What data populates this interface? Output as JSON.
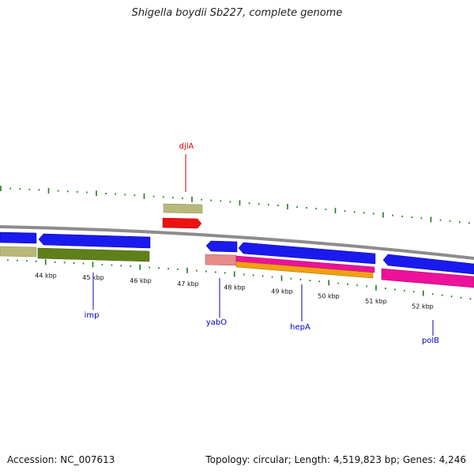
{
  "title": "Shigella boydii Sb227, complete genome",
  "footer": {
    "accession": "Accession: NC_007613",
    "topology": "Topology: circular; Length: 4,519,823 bp; Genes: 4,246"
  },
  "colors": {
    "backbone": "#8c8c8c",
    "tick": "#1e7a1e",
    "blue_gene": "#1a1aee",
    "olive_gene": "#5f7f1a",
    "khaki_gene": "#b8b87a",
    "red_gene": "#ee1111",
    "pink_gene": "#ee1199",
    "orange_gene": "#f0a010",
    "salmon_gene": "#e88a8a",
    "red_label": "#cc0000",
    "blue_label": "#0000cc"
  },
  "ticks": [
    {
      "label": "44 kbp"
    },
    {
      "label": "45 kbp"
    },
    {
      "label": "46 kbp"
    },
    {
      "label": "47 kbp"
    },
    {
      "label": "48 kbp"
    },
    {
      "label": "49 kbp"
    },
    {
      "label": "50 kbp"
    },
    {
      "label": "51 kbp"
    },
    {
      "label": "52 kbp"
    }
  ],
  "gene_labels": [
    {
      "name": "djlA",
      "strand": "forward"
    },
    {
      "name": "imp",
      "strand": "reverse"
    },
    {
      "name": "yabO",
      "strand": "reverse"
    },
    {
      "name": "hepA",
      "strand": "reverse"
    },
    {
      "name": "polB",
      "strand": "reverse"
    }
  ]
}
